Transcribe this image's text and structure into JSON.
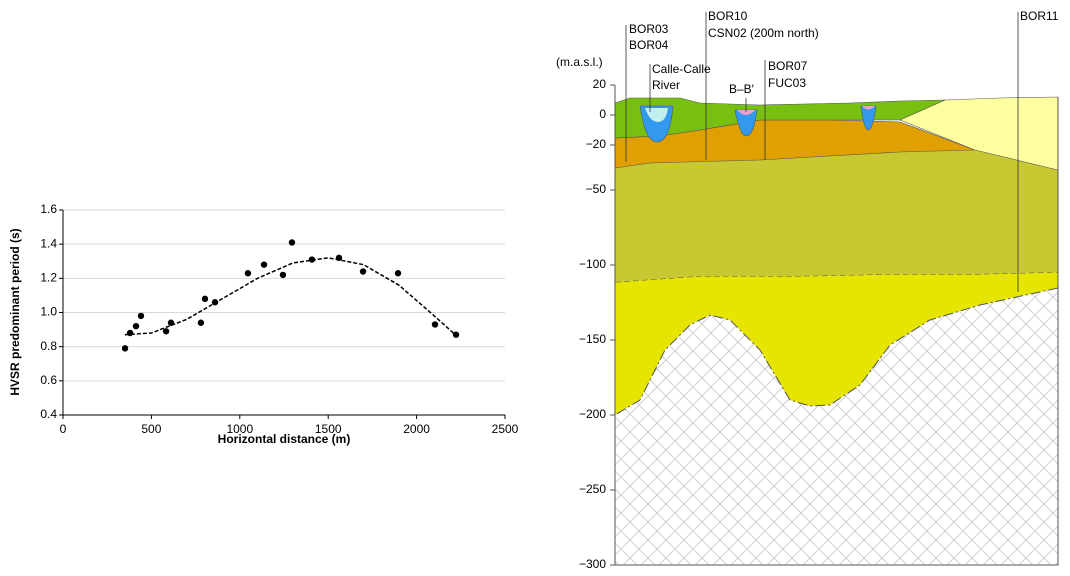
{
  "chart_data": [
    {
      "type": "scatter",
      "xlabel": "Horizontal distance (m)",
      "ylabel": "HVSR predominant period (s)",
      "xlim": [
        0,
        2500
      ],
      "xticks": [
        0,
        500,
        1000,
        1500,
        2000,
        2500
      ],
      "ylim": [
        0.4,
        1.6
      ],
      "yticks": [
        0.4,
        0.6,
        0.8,
        {
          "value": 1,
          "label": "1.0"
        },
        1.2,
        1.4,
        1.6
      ],
      "grid": true,
      "color": "#000000",
      "points": {
        "x": [
          351,
          379,
          413,
          441,
          583,
          611,
          780,
          803,
          860,
          1046,
          1137,
          1244,
          1295,
          1408,
          1561,
          1697,
          1895,
          2104,
          2223
        ],
        "y": [
          0.79,
          0.88,
          0.92,
          0.98,
          0.89,
          0.94,
          0.94,
          1.08,
          1.06,
          1.23,
          1.28,
          1.22,
          1.41,
          1.31,
          1.32,
          1.24,
          1.23,
          0.93,
          0.87
        ]
      },
      "trend": {
        "x": [
          350,
          500,
          700,
          900,
          1100,
          1300,
          1500,
          1700,
          1900,
          2100,
          2230
        ],
        "y": [
          0.87,
          0.88,
          0.96,
          1.08,
          1.2,
          1.29,
          1.32,
          1.28,
          1.16,
          0.98,
          0.86
        ]
      }
    },
    {
      "type": "section",
      "ylabel": "(m.a.s.l.)",
      "ylim": [
        -300,
        20
      ],
      "yticks": [
        20,
        0,
        {
          "value": -20,
          "label": "−20"
        },
        {
          "value": -50,
          "label": "−50"
        },
        {
          "value": -100,
          "label": "−100"
        },
        {
          "value": -150,
          "label": "−150"
        },
        {
          "value": -200,
          "label": "−200"
        },
        {
          "value": -250,
          "label": "−250"
        },
        {
          "value": -300,
          "label": "−300"
        }
      ],
      "labels": [
        "BOR03",
        "BOR04",
        "BOR10",
        "CSN02 (200m north)",
        "Calle-Calle",
        "River",
        "B–B′",
        "BOR07",
        "FUC03",
        "BOR11"
      ]
    }
  ]
}
